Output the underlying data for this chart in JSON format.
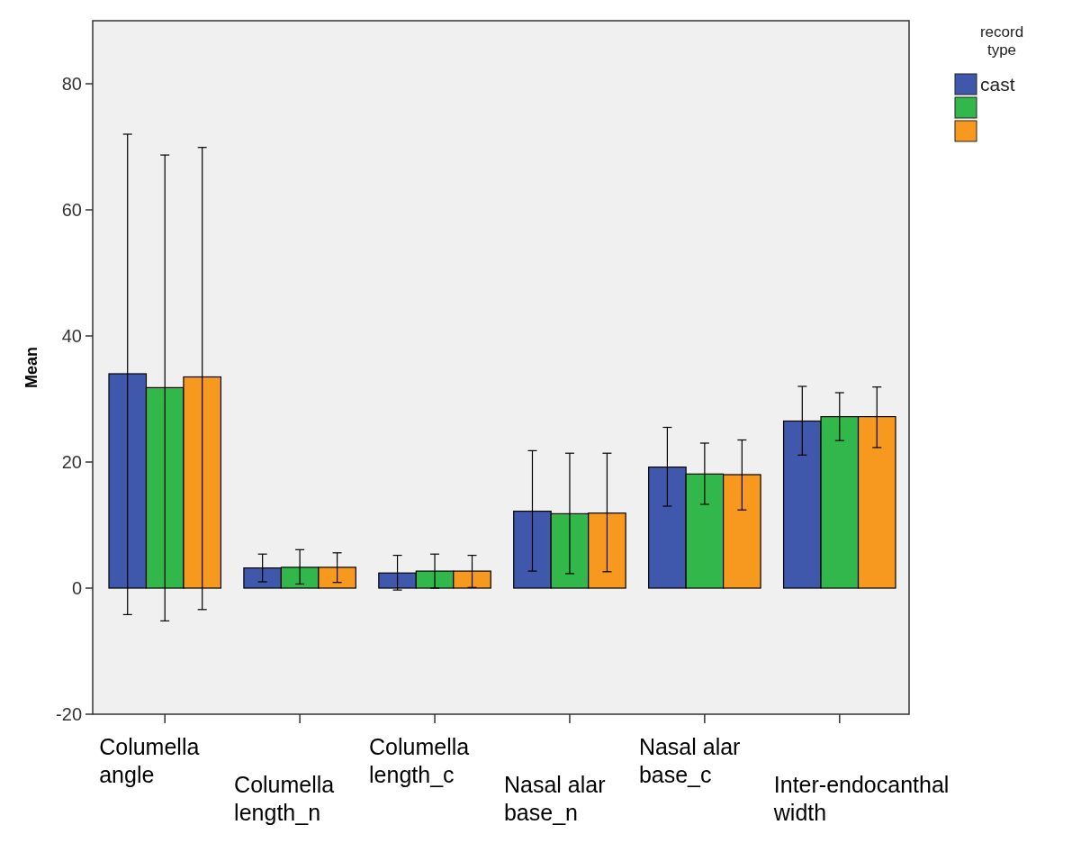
{
  "chart_data": {
    "type": "bar",
    "ylabel": "Mean",
    "legend_title": "record type",
    "legend": "right",
    "categories": [
      "Columella angle",
      "Columella length_n",
      "Columella length_c",
      "Nasal alar base_n",
      "Nasal alar base_c",
      "Inter-endocanthal width"
    ],
    "ylim": [
      -20,
      90
    ],
    "yticks": [
      -20,
      0,
      20,
      40,
      60,
      80
    ],
    "grid": false,
    "series": [
      {
        "name": "cast",
        "color": "#3f58ab",
        "values": [
          34.0,
          3.2,
          2.4,
          12.2,
          19.2,
          26.5
        ],
        "errors": [
          [
            -4.2,
            72.0
          ],
          [
            1.0,
            5.4
          ],
          [
            -0.3,
            5.2
          ],
          [
            2.7,
            21.8
          ],
          [
            13.0,
            25.5
          ],
          [
            21.1,
            32.0
          ]
        ]
      },
      {
        "color": "#32b84a",
        "values": [
          31.8,
          3.3,
          2.7,
          11.8,
          18.1,
          27.2
        ],
        "errors": [
          [
            -5.2,
            68.7
          ],
          [
            0.65,
            6.1
          ],
          [
            0,
            5.4
          ],
          [
            2.3,
            21.4
          ],
          [
            13.3,
            23.0
          ],
          [
            23.4,
            31.0
          ]
        ]
      },
      {
        "color": "#f7991f",
        "values": [
          33.5,
          3.3,
          2.7,
          11.9,
          18.0,
          27.2
        ],
        "errors": [
          [
            -3.4,
            69.9
          ],
          [
            0.9,
            5.6
          ],
          [
            0.1,
            5.2
          ],
          [
            2.6,
            21.4
          ],
          [
            12.4,
            23.5
          ],
          [
            22.3,
            31.9
          ]
        ]
      }
    ]
  }
}
